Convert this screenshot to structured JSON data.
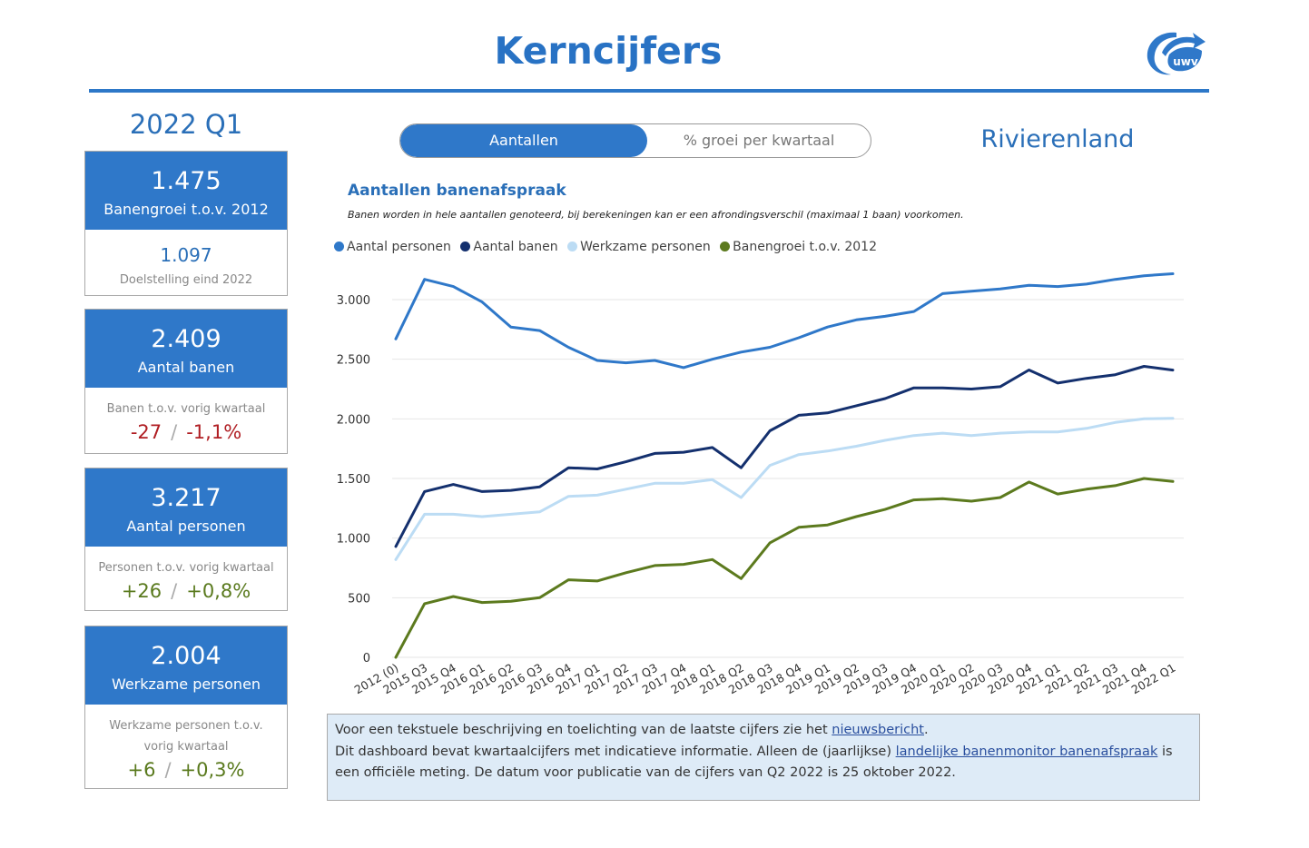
{
  "header": {
    "title": "Kerncijfers",
    "logo_text": "uwv"
  },
  "sidebar": {
    "quarter": "2022 Q1",
    "kpis": [
      {
        "value": "1.475",
        "label": "Banengroei t.o.v. 2012",
        "target_value": "1.097",
        "target_label": "Doelstelling eind 2022"
      },
      {
        "value": "2.409",
        "label": "Aantal banen",
        "sub_label": "Banen t.o.v. vorig kwartaal",
        "change_abs": "-27",
        "change_pct": "-1,1%"
      },
      {
        "value": "3.217",
        "label": "Aantal personen",
        "sub_label": "Personen t.o.v. vorig kwartaal",
        "change_abs": "+26",
        "change_pct": "+0,8%"
      },
      {
        "value": "2.004",
        "label": "Werkzame personen",
        "sub_label_1": "Werkzame personen t.o.v.",
        "sub_label_2": "vorig kwartaal",
        "change_abs": "+6",
        "change_pct": "+0,3%"
      }
    ]
  },
  "toggle": {
    "active": "Aantallen",
    "inactive": "% groei per kwartaal"
  },
  "region": "Rivierenland",
  "chart_header": {
    "title": "Aantallen banenafspraak",
    "subtitle": "Banen worden in hele aantallen genoteerd, bij berekeningen kan er een afrondingsverschil (maximaal 1 baan) voorkomen."
  },
  "chart_data": {
    "type": "line",
    "categories": [
      "2012 (0)",
      "2015 Q3",
      "2015 Q4",
      "2016 Q1",
      "2016 Q2",
      "2016 Q3",
      "2016 Q4",
      "2017 Q1",
      "2017 Q2",
      "2017 Q3",
      "2017 Q4",
      "2018 Q1",
      "2018 Q2",
      "2018 Q3",
      "2018 Q4",
      "2019 Q1",
      "2019 Q2",
      "2019 Q3",
      "2019 Q4",
      "2020 Q1",
      "2020 Q2",
      "2020 Q3",
      "2020 Q4",
      "2021 Q1",
      "2021 Q2",
      "2021 Q3",
      "2021 Q4",
      "2022 Q1"
    ],
    "ylim": [
      0,
      3000
    ],
    "yticks": [
      0,
      500,
      1000,
      1500,
      2000,
      2500,
      3000
    ],
    "ytick_labels": [
      "0",
      "500",
      "1.000",
      "1.500",
      "2.000",
      "2.500",
      "3.000"
    ],
    "grid": true,
    "legend_position": "top-left",
    "series": [
      {
        "name": "Aantal personen",
        "color": "#2f78c9",
        "values": [
          2670,
          3170,
          3110,
          2980,
          2770,
          2740,
          2600,
          2490,
          2470,
          2490,
          2430,
          2500,
          2560,
          2600,
          2680,
          2770,
          2830,
          2860,
          2900,
          3050,
          3070,
          3090,
          3120,
          3110,
          3130,
          3170,
          3200,
          3217
        ]
      },
      {
        "name": "Aantal banen",
        "color": "#14306e",
        "values": [
          930,
          1390,
          1450,
          1390,
          1400,
          1430,
          1590,
          1580,
          1640,
          1710,
          1720,
          1760,
          1590,
          1900,
          2030,
          2050,
          2110,
          2170,
          2260,
          2260,
          2250,
          2270,
          2410,
          2300,
          2340,
          2370,
          2440,
          2409
        ]
      },
      {
        "name": "Werkzame personen",
        "color": "#bcdcf4",
        "values": [
          820,
          1200,
          1200,
          1180,
          1200,
          1220,
          1350,
          1360,
          1410,
          1460,
          1460,
          1490,
          1340,
          1610,
          1700,
          1730,
          1770,
          1820,
          1860,
          1880,
          1860,
          1880,
          1890,
          1890,
          1920,
          1970,
          2000,
          2004
        ]
      },
      {
        "name": "Banengroei t.o.v. 2012",
        "color": "#5c7a1e",
        "values": [
          0,
          450,
          510,
          460,
          470,
          500,
          650,
          640,
          710,
          770,
          780,
          820,
          660,
          960,
          1090,
          1110,
          1180,
          1240,
          1320,
          1330,
          1310,
          1340,
          1470,
          1370,
          1410,
          1440,
          1500,
          1475
        ]
      }
    ]
  },
  "info": {
    "line1_text": "Voor een tekstuele beschrijving en toelichting van de laatste cijfers zie het ",
    "line1_link": "nieuwsbericht",
    "line1_end": ".",
    "line2_text": "Dit dashboard bevat kwartaalcijfers met indicatieve informatie. Alleen de (jaarlijkse) ",
    "line2_link": "landelijke banenmonitor banenafspraak",
    "line2_end": " is",
    "line3_text": "een officiële meting. De datum voor publicatie van de cijfers van Q2 2022 is 25 oktober 2022."
  }
}
